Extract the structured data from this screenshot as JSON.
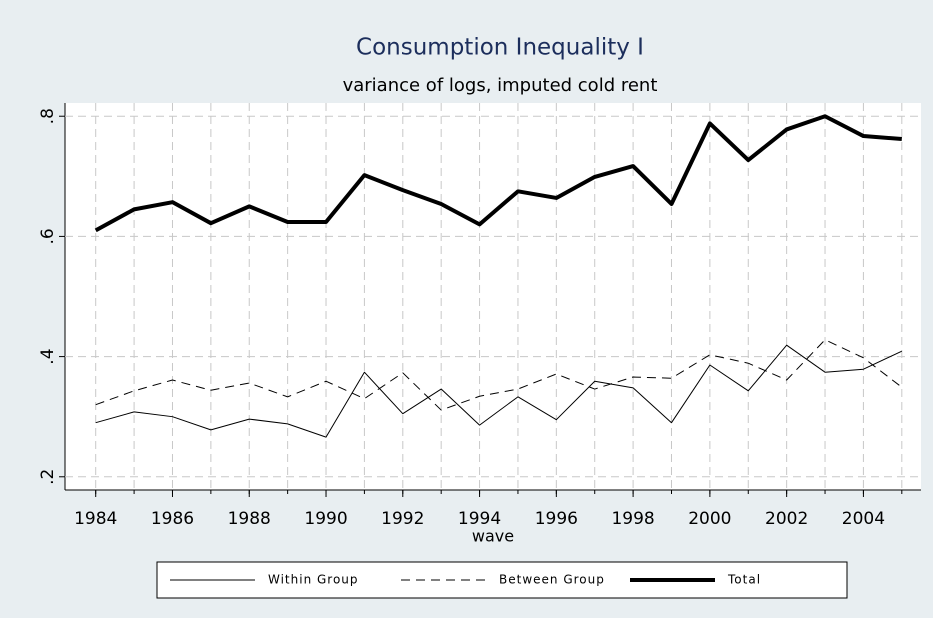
{
  "chart_data": {
    "type": "line",
    "title": "Consumption Inequality I",
    "subtitle": "variance of logs, imputed cold rent",
    "x_label": "wave",
    "x": [
      1984,
      1985,
      1986,
      1987,
      1988,
      1989,
      1990,
      1991,
      1992,
      1993,
      1994,
      1995,
      1996,
      1997,
      1998,
      1999,
      2000,
      2001,
      2002,
      2003,
      2004,
      2005
    ],
    "series": [
      {
        "name": "Within Group",
        "color": "#000000",
        "style": "solid",
        "line_width": 1,
        "values": [
          0.29,
          0.308,
          0.3,
          0.278,
          0.296,
          0.288,
          0.266,
          0.374,
          0.305,
          0.346,
          0.286,
          0.333,
          0.295,
          0.359,
          0.348,
          0.29,
          0.386,
          0.343,
          0.419,
          0.374,
          0.379,
          0.409
        ]
      },
      {
        "name": "Between Group",
        "color": "#000000",
        "style": "dashed",
        "line_width": 1,
        "values": [
          0.32,
          0.343,
          0.361,
          0.344,
          0.356,
          0.333,
          0.359,
          0.33,
          0.373,
          0.311,
          0.334,
          0.346,
          0.371,
          0.346,
          0.366,
          0.364,
          0.403,
          0.389,
          0.361,
          0.428,
          0.398,
          0.349
        ]
      },
      {
        "name": "Total",
        "color": "#000000",
        "style": "solid",
        "line_width": 4,
        "values": [
          0.61,
          0.645,
          0.657,
          0.622,
          0.65,
          0.624,
          0.624,
          0.702,
          0.677,
          0.654,
          0.62,
          0.675,
          0.664,
          0.699,
          0.717,
          0.654,
          0.788,
          0.727,
          0.778,
          0.8,
          0.767,
          0.762
        ]
      }
    ],
    "xlim": [
      1983.2,
      2005.5
    ],
    "xticks": [
      1984,
      1986,
      1988,
      1990,
      1992,
      1994,
      1996,
      1998,
      2000,
      2002,
      2004
    ],
    "ylim": [
      0.178,
      0.822
    ],
    "yticks": [
      {
        "value": 0.2,
        "label": ".2"
      },
      {
        "value": 0.4,
        "label": ".4"
      },
      {
        "value": 0.6,
        "label": ".6"
      },
      {
        "value": 0.8,
        "label": ".8"
      }
    ],
    "grid": true,
    "legend_position": "bottom"
  }
}
